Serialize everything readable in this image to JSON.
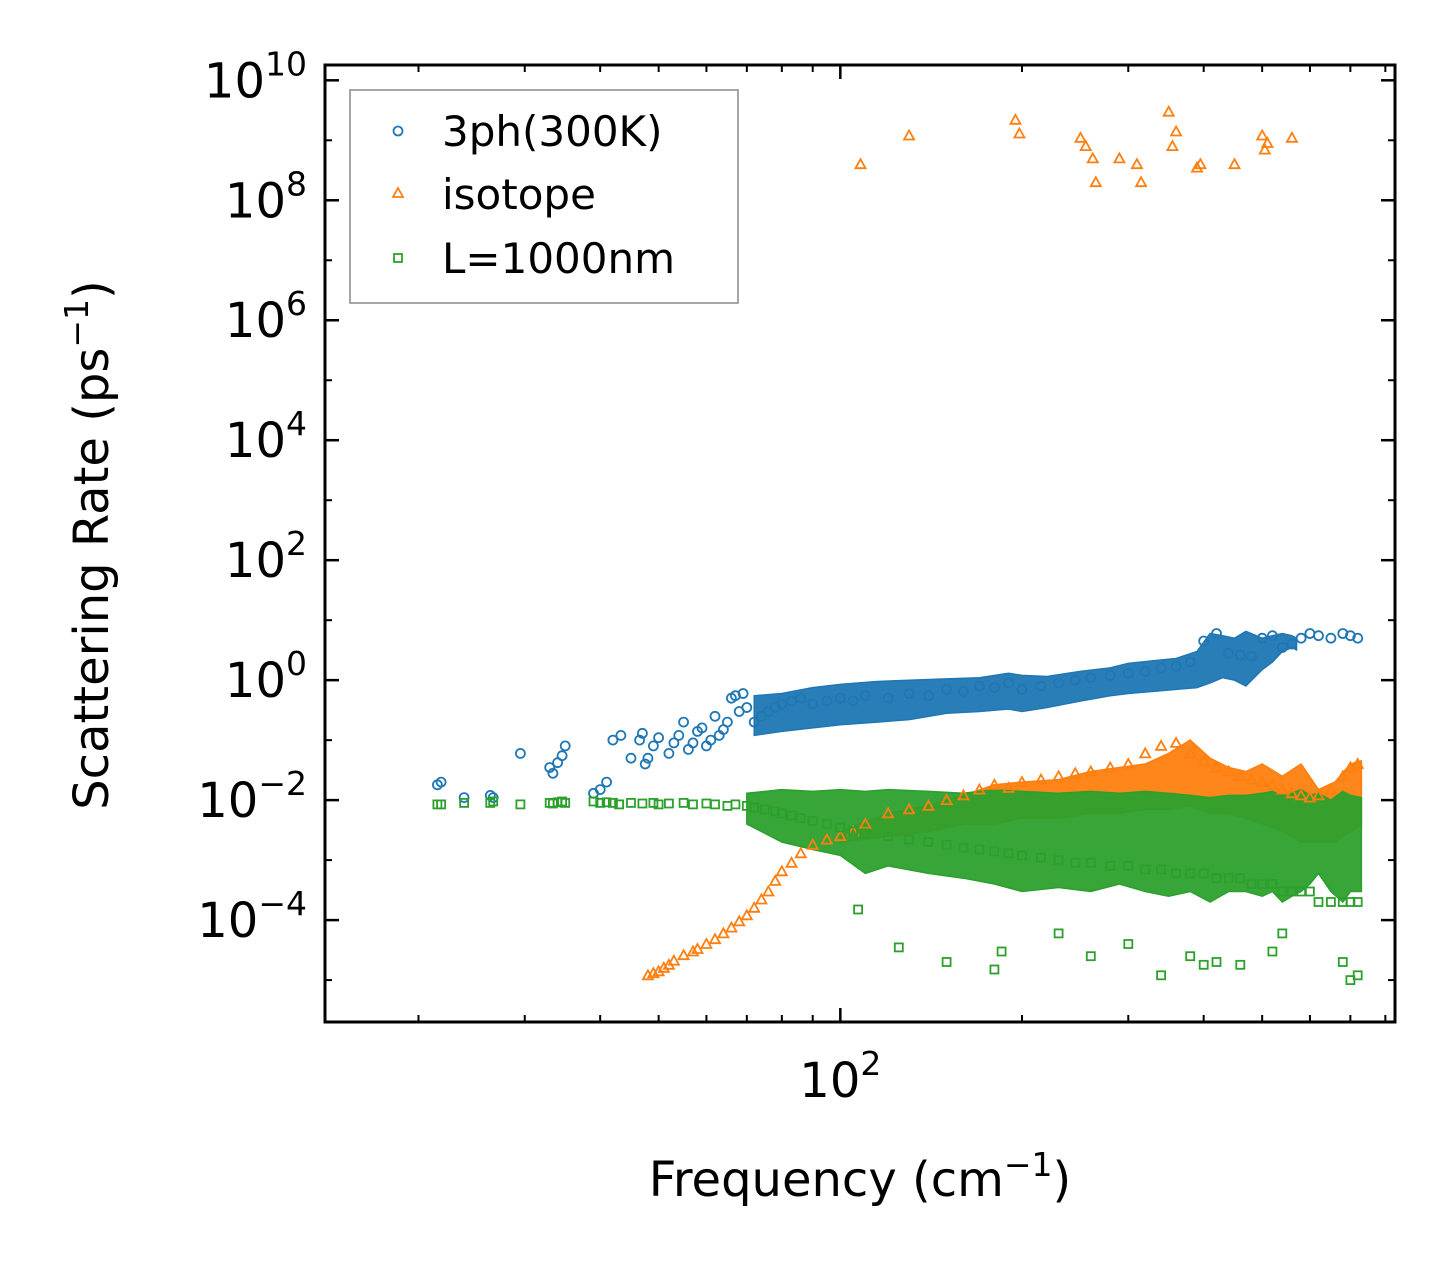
{
  "chart_data": {
    "type": "scatter",
    "title": "",
    "xlabel": "Frequency (cm",
    "xlabel_sup": "−1",
    "xlabel_end": ")",
    "ylabel": "Scattering Rate (ps",
    "ylabel_sup": "−1",
    "ylabel_end": ")",
    "xscale": "log",
    "yscale": "log",
    "xlim": [
      14,
      830
    ],
    "ylim": [
      2e-06,
      18000000000.0
    ],
    "x_ticks": [
      {
        "base": "10",
        "exp": "2",
        "value": 100
      }
    ],
    "y_ticks": [
      {
        "base": "10",
        "exp": "10",
        "value": 10000000000.0
      },
      {
        "base": "10",
        "exp": "8",
        "value": 100000000.0
      },
      {
        "base": "10",
        "exp": "6",
        "value": 1000000.0
      },
      {
        "base": "10",
        "exp": "4",
        "value": 10000.0
      },
      {
        "base": "10",
        "exp": "2",
        "value": 100.0
      },
      {
        "base": "10",
        "exp": "0",
        "value": 1
      },
      {
        "base": "10",
        "exp": "−2",
        "value": 0.01
      },
      {
        "base": "10",
        "exp": "−4",
        "value": 0.0001
      }
    ],
    "legend_position": "upper-left",
    "series": [
      {
        "name": "3ph(300K)",
        "marker": "circle",
        "color": "#1f77b4",
        "x": [
          21.5,
          21.8,
          23.8,
          26.3,
          26.6,
          29.5,
          33,
          33.4,
          34,
          34.6,
          35,
          39,
          40,
          41,
          42,
          43.3,
          45,
          46.5,
          47,
          47.5,
          48,
          49,
          50,
          52,
          53,
          54,
          55,
          56,
          57,
          58,
          59,
          60,
          61,
          62,
          63,
          64,
          65,
          66,
          67,
          68,
          69,
          70,
          72,
          74,
          76,
          78,
          80,
          83,
          86,
          90,
          95,
          100,
          105,
          110,
          120,
          130,
          140,
          150,
          160,
          170,
          180,
          190,
          200,
          215,
          230,
          245,
          260,
          280,
          300,
          320,
          340,
          360,
          380,
          400,
          420,
          440,
          460,
          480,
          500,
          520,
          540,
          560,
          580,
          600,
          620,
          650,
          680,
          700,
          720
        ],
        "y": [
          0.018,
          0.02,
          0.011,
          0.012,
          0.011,
          0.06,
          0.035,
          0.028,
          0.042,
          0.055,
          0.08,
          0.013,
          0.015,
          0.02,
          0.1,
          0.12,
          0.05,
          0.1,
          0.13,
          0.04,
          0.05,
          0.08,
          0.11,
          0.06,
          0.09,
          0.12,
          0.2,
          0.07,
          0.09,
          0.14,
          0.16,
          0.08,
          0.1,
          0.25,
          0.12,
          0.15,
          0.2,
          0.5,
          0.55,
          0.3,
          0.6,
          0.35,
          0.2,
          0.25,
          0.3,
          0.35,
          0.4,
          0.45,
          0.5,
          0.4,
          0.45,
          0.5,
          0.45,
          0.55,
          0.5,
          0.6,
          0.55,
          0.7,
          0.65,
          0.8,
          0.75,
          0.9,
          0.7,
          0.8,
          0.9,
          1.0,
          1.1,
          1.2,
          1.3,
          1.4,
          1.6,
          1.7,
          2.0,
          4.5,
          6.0,
          2.8,
          2.6,
          2.5,
          5.0,
          5.5,
          3.5,
          4.0,
          5.0,
          6.0,
          5.5,
          5.0,
          6.0,
          5.5,
          5.0
        ]
      },
      {
        "name": "isotope",
        "marker": "triangle",
        "color": "#ff7f0e",
        "x": [
          48,
          49,
          50,
          51,
          52,
          53,
          55,
          57,
          58,
          60,
          62,
          64,
          66,
          68,
          70,
          72,
          74,
          76,
          78,
          80,
          83,
          86,
          90,
          95,
          100,
          105,
          110,
          120,
          130,
          140,
          150,
          160,
          170,
          180,
          190,
          200,
          215,
          230,
          245,
          260,
          280,
          300,
          320,
          340,
          360,
          380,
          400,
          420,
          440,
          460,
          480,
          500,
          520,
          540,
          560,
          580,
          600,
          620,
          650,
          680,
          700,
          720,
          108,
          130,
          195,
          198,
          250,
          255,
          262,
          265,
          290,
          310,
          315,
          350,
          355,
          360,
          390,
          395,
          450,
          500,
          505,
          510,
          560
        ],
        "y": [
          1.2e-05,
          1.3e-05,
          1.4e-05,
          1.6e-05,
          1.8e-05,
          2.1e-05,
          2.6e-05,
          3e-05,
          3.3e-05,
          4e-05,
          4.8e-05,
          6e-05,
          7.5e-05,
          9.5e-05,
          0.00012,
          0.00016,
          0.00022,
          0.0003,
          0.00045,
          0.00065,
          0.0009,
          0.0013,
          0.0018,
          0.0022,
          0.0025,
          0.003,
          0.004,
          0.006,
          0.007,
          0.008,
          0.01,
          0.012,
          0.015,
          0.018,
          0.016,
          0.02,
          0.022,
          0.025,
          0.028,
          0.03,
          0.035,
          0.04,
          0.06,
          0.08,
          0.09,
          0.06,
          0.045,
          0.035,
          0.03,
          0.025,
          0.022,
          0.02,
          0.018,
          0.015,
          0.013,
          0.012,
          0.011,
          0.012,
          0.015,
          0.025,
          0.035,
          0.04,
          400000000.0,
          1200000000.0,
          2200000000.0,
          1300000000.0,
          1100000000.0,
          800000000.0,
          500000000.0,
          200000000.0,
          500000000.0,
          400000000.0,
          200000000.0,
          3000000000.0,
          800000000.0,
          1400000000.0,
          350000000.0,
          400000000.0,
          400000000.0,
          1200000000.0,
          700000000.0,
          900000000.0,
          1100000000.0
        ]
      },
      {
        "name": "L=1000nm",
        "marker": "square",
        "color": "#2ca02c",
        "x": [
          21.5,
          21.8,
          23.8,
          26.3,
          26.6,
          29.5,
          33,
          33.4,
          34,
          34.6,
          35,
          39,
          40,
          41,
          42,
          43,
          45,
          47,
          49,
          50,
          52,
          55,
          57,
          60,
          62,
          65,
          67,
          70,
          72,
          75,
          78,
          80,
          83,
          86,
          90,
          95,
          100,
          105,
          110,
          120,
          130,
          140,
          150,
          160,
          170,
          180,
          190,
          200,
          215,
          230,
          245,
          260,
          280,
          300,
          320,
          340,
          360,
          380,
          400,
          420,
          440,
          460,
          480,
          500,
          520,
          540,
          560,
          580,
          600,
          620,
          650,
          680,
          700,
          720,
          107,
          125,
          150,
          180,
          185,
          230,
          260,
          300,
          340,
          380,
          400,
          420,
          460,
          520,
          540,
          680,
          700,
          720
        ],
        "y": [
          0.0085,
          0.0085,
          0.009,
          0.009,
          0.0095,
          0.0085,
          0.009,
          0.0088,
          0.0092,
          0.0095,
          0.009,
          0.0095,
          0.009,
          0.0092,
          0.009,
          0.0085,
          0.009,
          0.0088,
          0.009,
          0.0085,
          0.0088,
          0.009,
          0.0085,
          0.0088,
          0.0085,
          0.008,
          0.0085,
          0.008,
          0.0075,
          0.007,
          0.0065,
          0.006,
          0.0055,
          0.005,
          0.0045,
          0.004,
          0.0035,
          0.003,
          0.0028,
          0.0025,
          0.0022,
          0.002,
          0.0018,
          0.0016,
          0.0015,
          0.0014,
          0.0013,
          0.0012,
          0.0011,
          0.001,
          0.0009,
          0.0009,
          0.0008,
          0.0008,
          0.0007,
          0.0007,
          0.0006,
          0.0006,
          0.0006,
          0.0005,
          0.0005,
          0.0005,
          0.0004,
          0.0004,
          0.0004,
          0.0003,
          0.0003,
          0.0003,
          0.0003,
          0.0002,
          0.0002,
          0.0002,
          0.0002,
          0.0002,
          0.00015,
          3.5e-05,
          2e-05,
          1.5e-05,
          3e-05,
          6e-05,
          2.5e-05,
          4e-05,
          1.2e-05,
          2.5e-05,
          1.8e-05,
          2e-05,
          1.8e-05,
          3e-05,
          6e-05,
          2e-05,
          1e-05,
          1.2e-05
        ]
      }
    ],
    "bands": [
      {
        "series_index": 0,
        "color": "#1f77b4",
        "x": [
          72,
          80,
          90,
          100,
          115,
          130,
          150,
          170,
          190,
          200,
          220,
          250,
          280,
          300,
          330,
          360,
          390,
          410,
          430,
          450,
          470,
          500,
          520,
          540,
          560,
          570
        ],
        "lower": [
          0.12,
          0.14,
          0.16,
          0.18,
          0.2,
          0.22,
          0.28,
          0.3,
          0.33,
          0.3,
          0.35,
          0.45,
          0.55,
          0.6,
          0.65,
          0.7,
          0.75,
          0.9,
          1.1,
          1.0,
          0.8,
          1.5,
          2.0,
          3.0,
          3.5,
          3.2
        ],
        "upper": [
          0.55,
          0.6,
          0.75,
          0.85,
          0.95,
          1.0,
          1.05,
          1.1,
          1.3,
          1.2,
          1.15,
          1.4,
          1.6,
          1.9,
          2.1,
          2.3,
          3.0,
          6.0,
          5.5,
          5.0,
          6.5,
          5.0,
          5.5,
          6.0,
          5.5,
          5.0
        ]
      },
      {
        "series_index": 1,
        "color": "#ff7f0e",
        "x": [
          100,
          120,
          140,
          160,
          180,
          200,
          230,
          260,
          290,
          320,
          350,
          380,
          410,
          440,
          470,
          500,
          540,
          580,
          620,
          660,
          700,
          730
        ],
        "lower": [
          0.002,
          0.0025,
          0.003,
          0.004,
          0.004,
          0.005,
          0.005,
          0.006,
          0.006,
          0.007,
          0.007,
          0.008,
          0.006,
          0.006,
          0.005,
          0.004,
          0.003,
          0.002,
          0.002,
          0.002,
          0.003,
          0.004
        ],
        "upper": [
          0.003,
          0.006,
          0.008,
          0.012,
          0.018,
          0.02,
          0.022,
          0.03,
          0.035,
          0.04,
          0.06,
          0.1,
          0.05,
          0.035,
          0.03,
          0.04,
          0.025,
          0.04,
          0.015,
          0.02,
          0.04,
          0.045
        ]
      },
      {
        "series_index": 2,
        "color": "#2ca02c",
        "x": [
          70,
          80,
          90,
          100,
          110,
          120,
          140,
          160,
          180,
          200,
          230,
          260,
          290,
          320,
          350,
          380,
          410,
          440,
          470,
          500,
          520,
          540,
          560,
          580,
          600,
          620,
          650,
          680,
          700,
          730
        ],
        "lower": [
          0.004,
          0.002,
          0.0015,
          0.0012,
          0.0006,
          0.0008,
          0.0006,
          0.0005,
          0.0004,
          0.0003,
          0.00035,
          0.0003,
          0.0004,
          0.0003,
          0.00025,
          0.0003,
          0.0002,
          0.0003,
          0.0003,
          0.00025,
          0.0003,
          0.0002,
          0.00025,
          0.0003,
          0.0004,
          0.0006,
          0.0003,
          0.0002,
          0.0003,
          0.0003
        ],
        "upper": [
          0.013,
          0.015,
          0.014,
          0.015,
          0.014,
          0.015,
          0.014,
          0.013,
          0.015,
          0.014,
          0.013,
          0.014,
          0.013,
          0.014,
          0.013,
          0.012,
          0.011,
          0.012,
          0.012,
          0.013,
          0.014,
          0.012,
          0.013,
          0.015,
          0.012,
          0.013,
          0.01,
          0.014,
          0.012,
          0.011
        ]
      }
    ]
  }
}
